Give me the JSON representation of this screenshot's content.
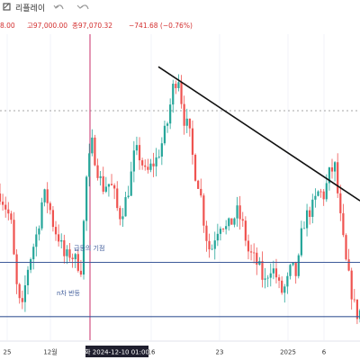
{
  "toolbar": {
    "replay_label": "리플레이",
    "undo_icon": "undo-arrow-icon",
    "redo_icon": "redo-arrow-icon",
    "replay_icon": "replay-icon"
  },
  "ohlc_line": {
    "open_text": "8.00",
    "high_text": "고97,000.00",
    "close_text": "종97,070.32",
    "change_text": "−741.68 (−0.76%)"
  },
  "annotations": {
    "upper_level_label": "급등의 기점",
    "lower_level_label": "n차 반등"
  },
  "time_axis": {
    "crosshair_label": "화 2024-12-10  01:00",
    "ticks": [
      "25",
      "12월",
      "16",
      "23",
      "2025",
      "6"
    ]
  },
  "colors": {
    "up": "#26a69a",
    "down": "#ef5350",
    "level_line": "#3d5a99",
    "trendline": "#111111",
    "crosshair": "#c2185b"
  },
  "chart_data": {
    "type": "candlestick",
    "title": "",
    "xlabel": "",
    "ylabel": "",
    "x_ticks": [
      "25",
      "12월",
      "16",
      "23",
      "2025",
      "6"
    ],
    "y_range": [
      90300,
      107200
    ],
    "crosshair_time": "2024-12-10 01:00",
    "horizontal_levels": [
      {
        "label": "급등의 기점",
        "value": 94600
      },
      {
        "label": "n차 반등",
        "value": 91600
      }
    ],
    "trendline": {
      "from": [
        0.44,
        105400
      ],
      "to": [
        1.0,
        98000
      ]
    },
    "close_path": [
      [
        0.0,
        98400
      ],
      [
        0.015,
        97700
      ],
      [
        0.03,
        96900
      ],
      [
        0.045,
        93400
      ],
      [
        0.06,
        91700
      ],
      [
        0.075,
        94100
      ],
      [
        0.09,
        95300
      ],
      [
        0.105,
        96400
      ],
      [
        0.12,
        98400
      ],
      [
        0.135,
        97900
      ],
      [
        0.15,
        96500
      ],
      [
        0.165,
        95900
      ],
      [
        0.18,
        94800
      ],
      [
        0.195,
        95100
      ],
      [
        0.21,
        94700
      ],
      [
        0.225,
        94300
      ],
      [
        0.24,
        99200
      ],
      [
        0.255,
        101200
      ],
      [
        0.27,
        99800
      ],
      [
        0.285,
        98700
      ],
      [
        0.3,
        99000
      ],
      [
        0.315,
        98600
      ],
      [
        0.33,
        97100
      ],
      [
        0.345,
        97700
      ],
      [
        0.36,
        98900
      ],
      [
        0.375,
        100800
      ],
      [
        0.39,
        100400
      ],
      [
        0.405,
        99400
      ],
      [
        0.42,
        99900
      ],
      [
        0.435,
        100300
      ],
      [
        0.45,
        101200
      ],
      [
        0.465,
        102300
      ],
      [
        0.48,
        104200
      ],
      [
        0.495,
        105000
      ],
      [
        0.51,
        102600
      ],
      [
        0.525,
        101900
      ],
      [
        0.54,
        99700
      ],
      [
        0.555,
        98700
      ],
      [
        0.57,
        96300
      ],
      [
        0.585,
        95100
      ],
      [
        0.6,
        96300
      ],
      [
        0.615,
        96900
      ],
      [
        0.63,
        96400
      ],
      [
        0.645,
        96900
      ],
      [
        0.66,
        97400
      ],
      [
        0.675,
        96600
      ],
      [
        0.69,
        95200
      ],
      [
        0.705,
        94800
      ],
      [
        0.72,
        94300
      ],
      [
        0.735,
        93400
      ],
      [
        0.75,
        94400
      ],
      [
        0.765,
        94000
      ],
      [
        0.78,
        92900
      ],
      [
        0.795,
        93300
      ],
      [
        0.81,
        94400
      ],
      [
        0.825,
        93800
      ],
      [
        0.84,
        96600
      ],
      [
        0.855,
        97300
      ],
      [
        0.87,
        97700
      ],
      [
        0.885,
        98500
      ],
      [
        0.9,
        98300
      ],
      [
        0.915,
        99500
      ],
      [
        0.93,
        99900
      ],
      [
        0.945,
        97100
      ],
      [
        0.96,
        94700
      ],
      [
        0.975,
        93100
      ],
      [
        0.99,
        91700
      ],
      [
        1.0,
        91900
      ]
    ]
  }
}
